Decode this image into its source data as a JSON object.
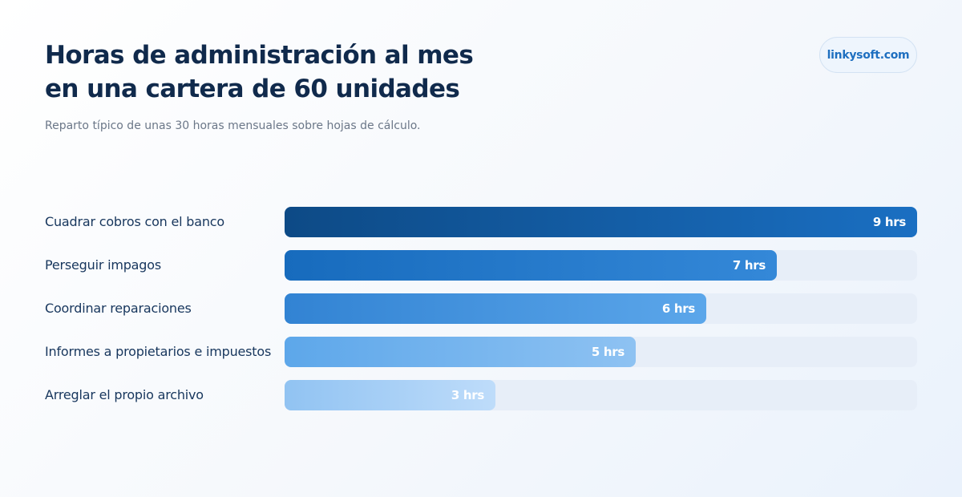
{
  "header": {
    "title_line1": "Horas de administración al mes",
    "title_line2": "en una cartera de 60 unidades",
    "subtitle": "Reparto típico de unas 30 horas mensuales sobre hojas de cálculo.",
    "brand": "linkysoft.com"
  },
  "chart_data": {
    "type": "bar",
    "orientation": "horizontal",
    "title": "Horas de administración al mes en una cartera de 60 unidades",
    "subtitle": "Reparto típico de unas 30 horas mensuales sobre hojas de cálculo.",
    "categories": [
      "Cuadrar cobros con el banco",
      "Perseguir impagos",
      "Coordinar reparaciones",
      "Informes a propietarios e impuestos",
      "Arreglar el propio archivo"
    ],
    "values": [
      9,
      7,
      6,
      5,
      3
    ],
    "value_labels": [
      "9 hrs",
      "7 hrs",
      "6 hrs",
      "5 hrs",
      "3 hrs"
    ],
    "unit": "hrs",
    "xlim": [
      0,
      9
    ],
    "grid": false,
    "legend": "none",
    "colors": [
      [
        "#0d4a86",
        "#1a6fc2"
      ],
      [
        "#176bbd",
        "#3488d8"
      ],
      [
        "#3283d3",
        "#5ba6ea"
      ],
      [
        "#5da7ea",
        "#8ec2f2"
      ],
      [
        "#91c3f2",
        "#bedcfa"
      ]
    ],
    "track_color": "#e7eef8"
  }
}
